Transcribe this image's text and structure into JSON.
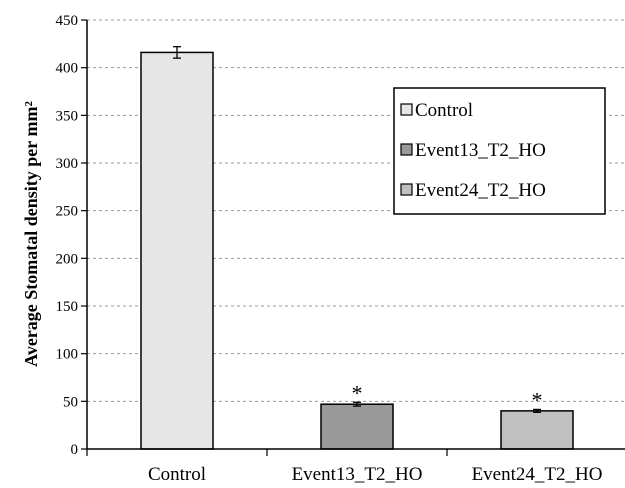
{
  "chart_data": {
    "type": "bar",
    "categories": [
      "Control",
      "Event13_T2_HO",
      "Event24_T2_HO"
    ],
    "values": [
      416,
      47,
      40
    ],
    "errors": [
      6,
      2,
      1.5
    ],
    "significance": [
      "",
      "*",
      "*"
    ],
    "ylabel": "Average Stomatal density per mm²",
    "xlabel": "",
    "ylim": [
      0,
      450
    ],
    "yticks": [
      0,
      50,
      100,
      150,
      200,
      250,
      300,
      350,
      400,
      450
    ],
    "grid": true,
    "legend": {
      "placement": "right",
      "entries": [
        "Control",
        "Event13_T2_HO",
        "Event24_T2_HO"
      ]
    },
    "colors": [
      "#e6e6e6",
      "#999999",
      "#c0c0c0"
    ]
  }
}
